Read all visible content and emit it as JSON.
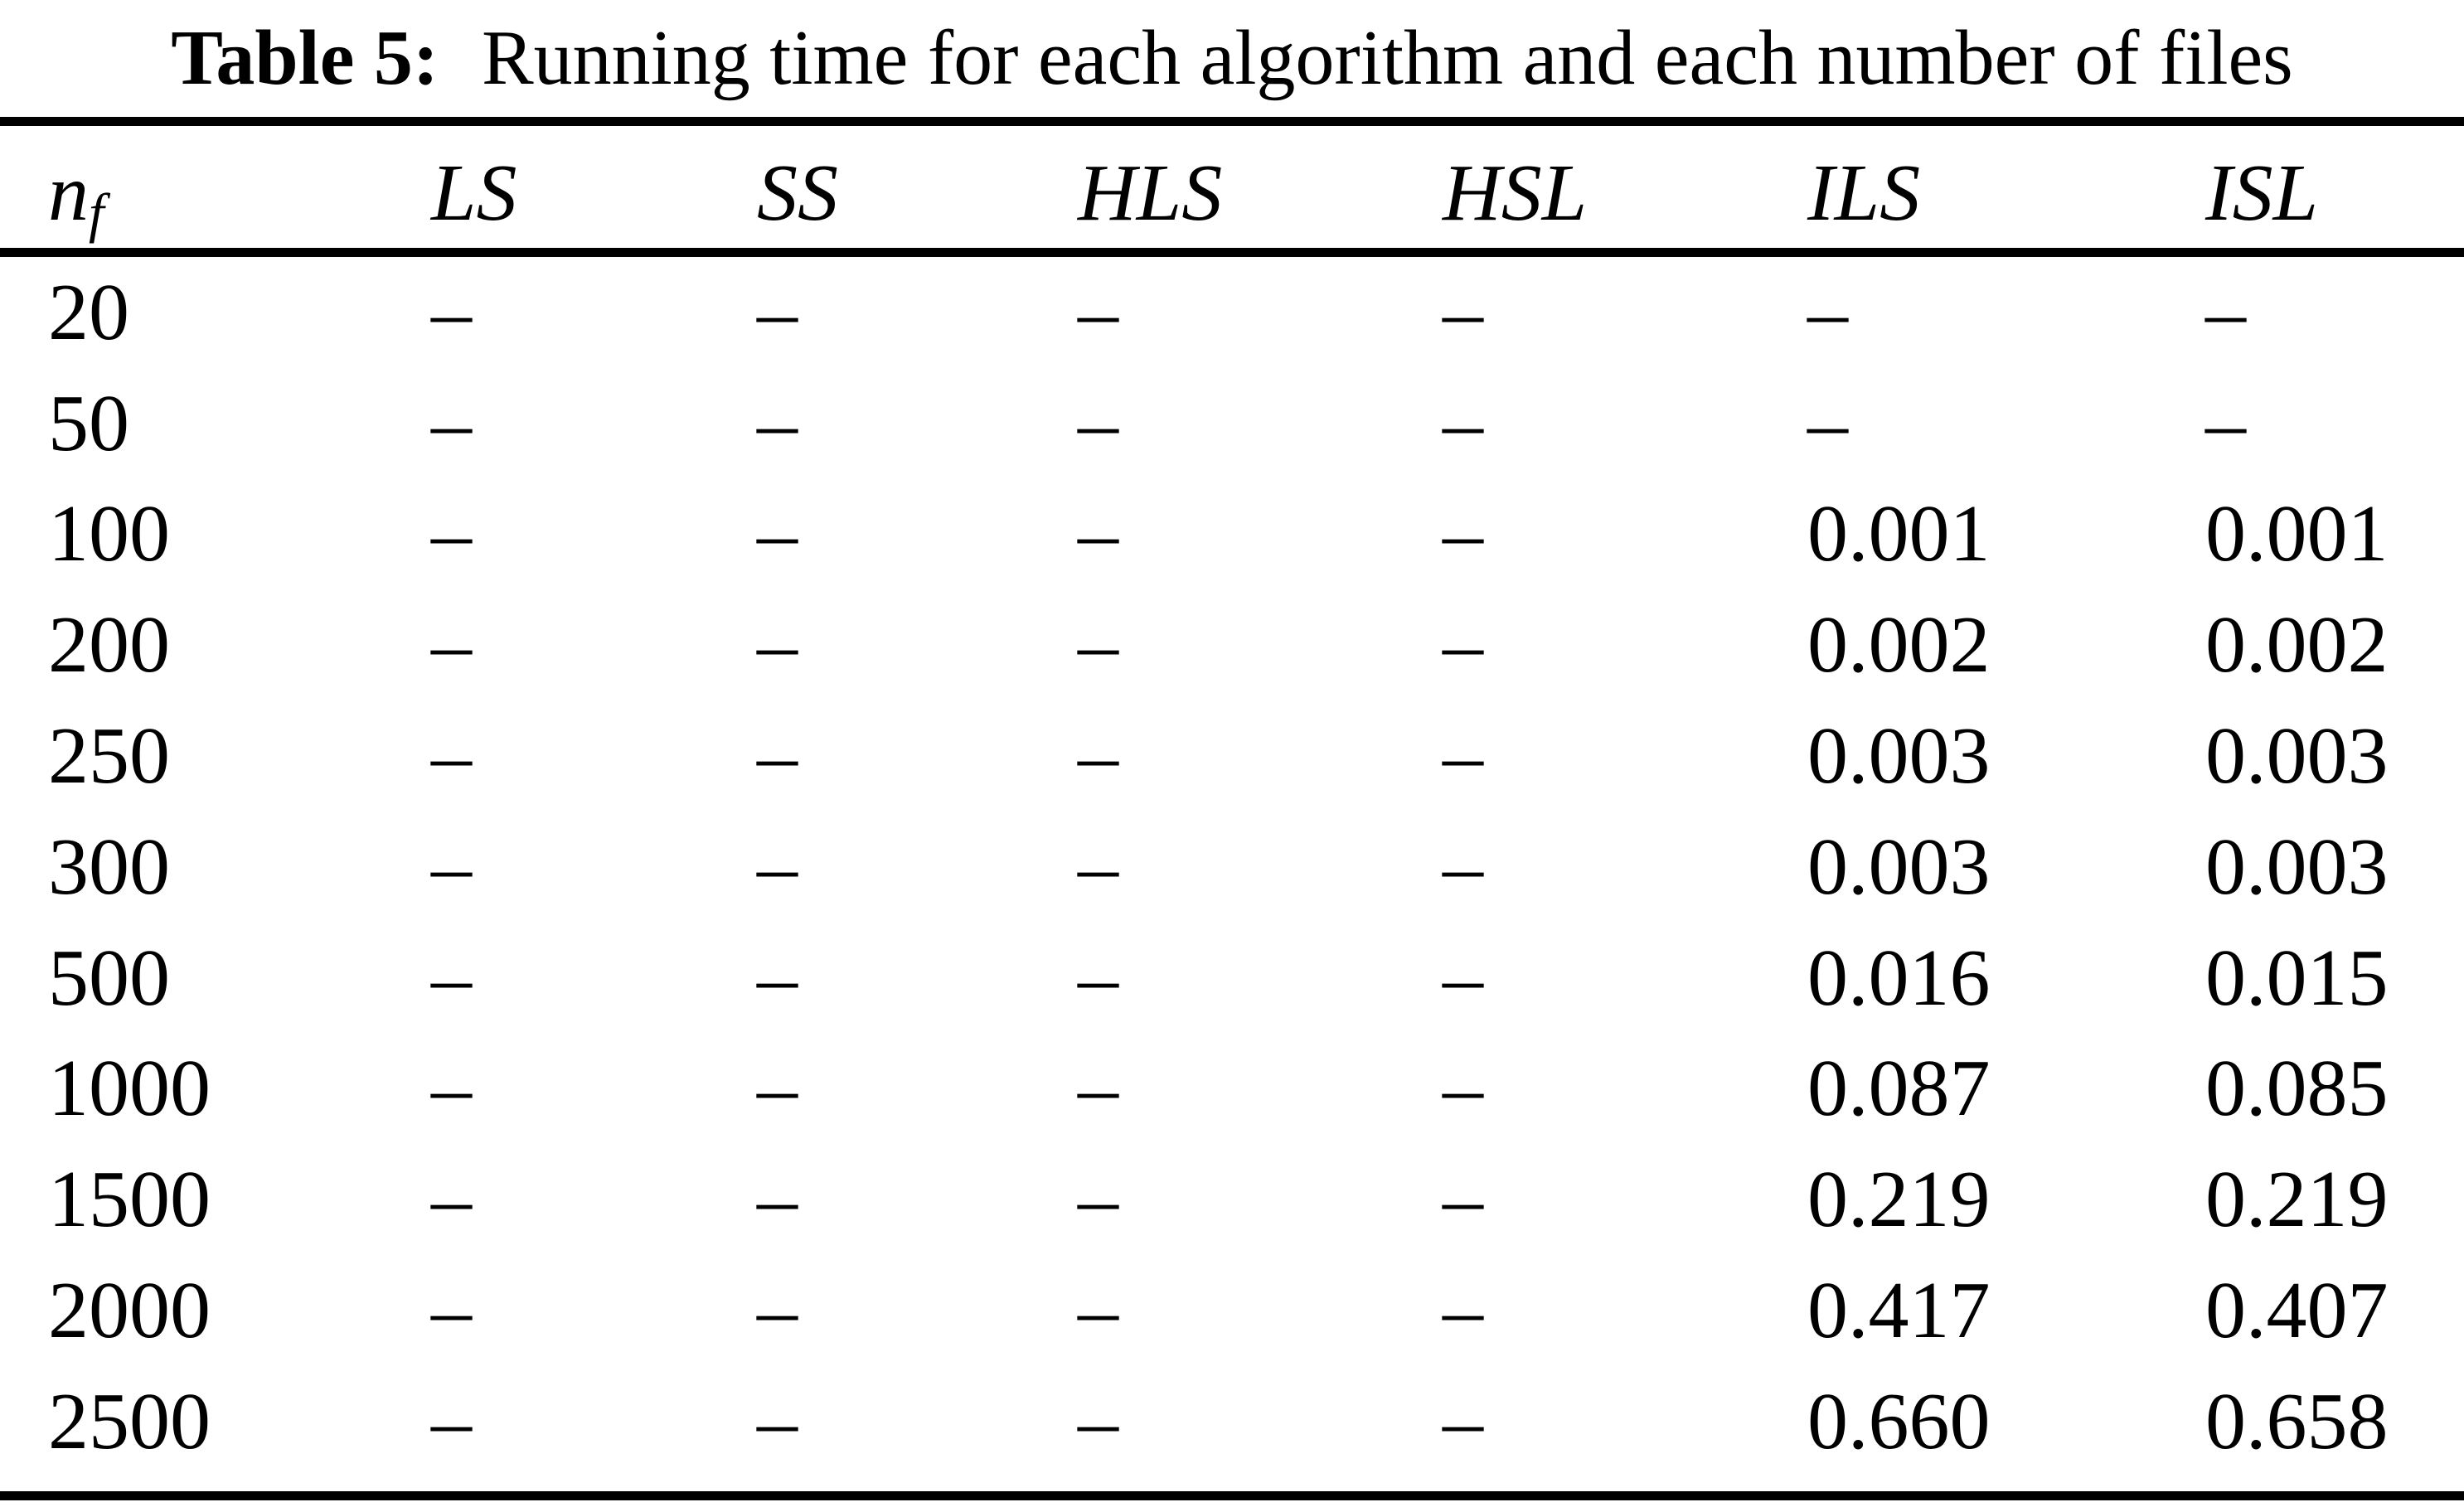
{
  "caption": {
    "label": "Table 5:",
    "text": "Running time for each algorithm and each number of files"
  },
  "table": {
    "columns": [
      {
        "key": "nf",
        "label": "n",
        "subscript": "f"
      },
      {
        "key": "ls",
        "label": "LS"
      },
      {
        "key": "ss",
        "label": "SS"
      },
      {
        "key": "hls",
        "label": "HLS"
      },
      {
        "key": "hsl",
        "label": "HSL"
      },
      {
        "key": "ils",
        "label": "ILS"
      },
      {
        "key": "isl",
        "label": "ISL"
      }
    ],
    "rows": [
      [
        "20",
        "–",
        "–",
        "–",
        "–",
        "–",
        "–"
      ],
      [
        "50",
        "–",
        "–",
        "–",
        "–",
        "–",
        "–"
      ],
      [
        "100",
        "–",
        "–",
        "–",
        "–",
        "0.001",
        "0.001"
      ],
      [
        "200",
        "–",
        "–",
        "–",
        "–",
        "0.002",
        "0.002"
      ],
      [
        "250",
        "–",
        "–",
        "–",
        "–",
        "0.003",
        "0.003"
      ],
      [
        "300",
        "–",
        "–",
        "–",
        "–",
        "0.003",
        "0.003"
      ],
      [
        "500",
        "–",
        "–",
        "–",
        "–",
        "0.016",
        "0.015"
      ],
      [
        "1000",
        "–",
        "–",
        "–",
        "–",
        "0.087",
        "0.085"
      ],
      [
        "1500",
        "–",
        "–",
        "–",
        "–",
        "0.219",
        "0.219"
      ],
      [
        "2000",
        "–",
        "–",
        "–",
        "–",
        "0.417",
        "0.407"
      ],
      [
        "2500",
        "–",
        "–",
        "–",
        "–",
        "0.660",
        "0.658"
      ]
    ]
  },
  "colors": {
    "background": "#ffffff",
    "text": "#000000",
    "rule": "#000000"
  }
}
